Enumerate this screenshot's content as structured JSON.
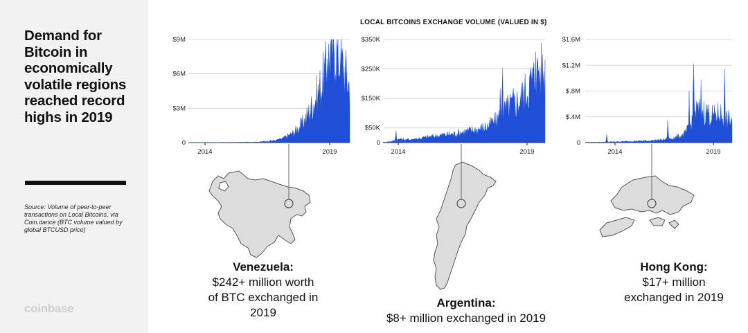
{
  "headline": "Demand for Bitcoin in economically volatile regions reached record highs in 2019",
  "source": "Source: Volume of peer-to-peer transactions on Local Bitcoins, via Coin.dance (BTC volume valued by global BTCUSD price)",
  "logo": "coinbase",
  "chart_title": "LOCAL BITCOINS EXCHANGE VOLUME (VALUED IN $)",
  "colors": {
    "fill": "#1f4fd6",
    "grid": "#cccccc",
    "axis": "#222222",
    "map": "#dcdcdc",
    "map_stroke": "#555555"
  },
  "chart_data": [
    {
      "type": "area",
      "country": "Venezuela",
      "x_ticks": [
        "2014",
        "2019"
      ],
      "y_ticks": [
        "0",
        "$3M",
        "$6M",
        "$9M"
      ],
      "ylim": [
        0,
        9
      ],
      "y_unit": "millions USD",
      "grid": true,
      "anchors": [
        [
          2013.0,
          0.01
        ],
        [
          2014.0,
          0.02
        ],
        [
          2015.0,
          0.03
        ],
        [
          2016.0,
          0.06
        ],
        [
          2016.7,
          0.2
        ],
        [
          2017.0,
          0.35
        ],
        [
          2017.5,
          0.9
        ],
        [
          2017.9,
          1.8
        ],
        [
          2018.2,
          3.0
        ],
        [
          2018.5,
          4.3
        ],
        [
          2018.8,
          6.0
        ],
        [
          2019.0,
          7.8
        ],
        [
          2019.2,
          8.9
        ],
        [
          2019.4,
          7.2
        ],
        [
          2019.6,
          6.5
        ],
        [
          2019.8,
          5.2
        ]
      ],
      "spikes": [
        [
          2018.9,
          7.6
        ],
        [
          2019.05,
          8.6
        ],
        [
          2019.2,
          9.0
        ],
        [
          2019.3,
          8.2
        ],
        [
          2019.45,
          8.0
        ],
        [
          2019.7,
          6.8
        ]
      ],
      "headline": "Venezuela:",
      "caption": [
        "$242+ million worth",
        "of BTC exchanged in",
        "2019"
      ]
    },
    {
      "type": "area",
      "country": "Argentina",
      "x_ticks": [
        "2014",
        "2019"
      ],
      "y_ticks": [
        "0",
        "$50K",
        "$150K",
        "$250K",
        "$350K"
      ],
      "ylim": [
        0,
        350
      ],
      "y_unit": "thousands USD",
      "grid": true,
      "anchors": [
        [
          2013.0,
          1
        ],
        [
          2013.4,
          5
        ],
        [
          2013.7,
          12
        ],
        [
          2014.0,
          10
        ],
        [
          2014.5,
          14
        ],
        [
          2015.0,
          20
        ],
        [
          2015.5,
          26
        ],
        [
          2016.0,
          30
        ],
        [
          2016.5,
          38
        ],
        [
          2017.0,
          45
        ],
        [
          2017.4,
          55
        ],
        [
          2017.8,
          75
        ],
        [
          2018.0,
          95
        ],
        [
          2018.3,
          120
        ],
        [
          2018.7,
          140
        ],
        [
          2019.0,
          170
        ],
        [
          2019.3,
          210
        ],
        [
          2019.6,
          240
        ]
      ],
      "spikes": [
        [
          2013.55,
          45
        ],
        [
          2017.95,
          200
        ],
        [
          2018.05,
          320
        ],
        [
          2018.5,
          220
        ],
        [
          2019.25,
          300
        ],
        [
          2019.45,
          350
        ],
        [
          2019.55,
          330
        ]
      ],
      "headline": "Argentina:",
      "caption": [
        "$8+ million exchanged in 2019"
      ]
    },
    {
      "type": "area",
      "country": "Hong Kong",
      "x_ticks": [
        "2014",
        "2019"
      ],
      "y_ticks": [
        "0",
        "$.4M",
        "$.8M",
        "$1.2M",
        "$1.6M"
      ],
      "ylim": [
        0,
        1.6
      ],
      "y_unit": "millions USD",
      "grid": true,
      "anchors": [
        [
          2013.0,
          0.005
        ],
        [
          2014.0,
          0.01
        ],
        [
          2015.0,
          0.02
        ],
        [
          2016.0,
          0.03
        ],
        [
          2016.8,
          0.05
        ],
        [
          2017.2,
          0.08
        ],
        [
          2017.6,
          0.12
        ],
        [
          2017.9,
          0.25
        ],
        [
          2018.1,
          0.45
        ],
        [
          2018.4,
          0.5
        ],
        [
          2018.7,
          0.45
        ],
        [
          2019.0,
          0.4
        ],
        [
          2019.3,
          0.45
        ],
        [
          2019.55,
          0.35
        ]
      ],
      "spikes": [
        [
          2014.0,
          0.13
        ],
        [
          2016.85,
          0.38
        ],
        [
          2017.85,
          0.85
        ],
        [
          2018.05,
          1.55
        ],
        [
          2018.2,
          0.85
        ],
        [
          2018.4,
          1.0
        ],
        [
          2018.7,
          0.75
        ],
        [
          2019.2,
          0.7
        ],
        [
          2019.5,
          1.4
        ]
      ],
      "headline": "Hong Kong:",
      "caption": [
        "$17+ million",
        "exchanged in 2019"
      ]
    }
  ]
}
